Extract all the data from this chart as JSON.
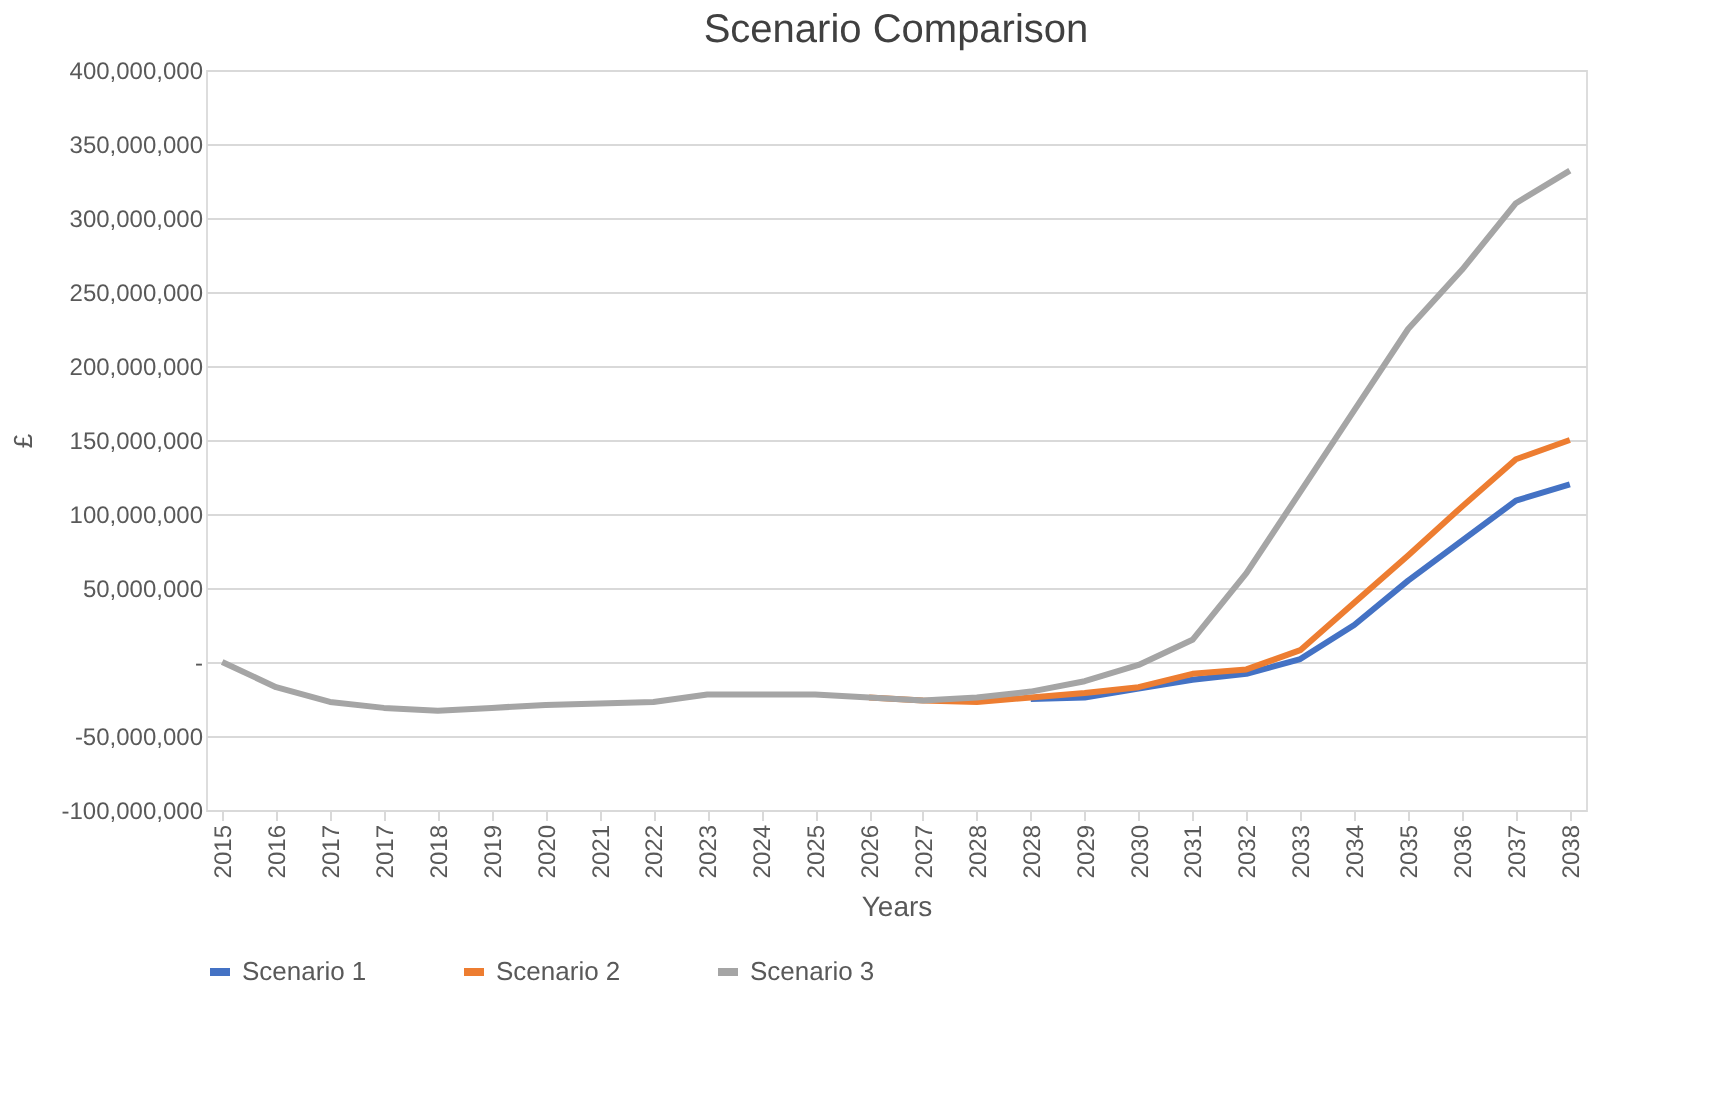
{
  "chart_data": {
    "type": "line",
    "title": "Scenario Comparison",
    "xlabel": "Years",
    "ylabel": "£",
    "categories": [
      "2015",
      "2016",
      "2017",
      "2017",
      "2018",
      "2019",
      "2020",
      "2021",
      "2022",
      "2023",
      "2024",
      "2025",
      "2026",
      "2027",
      "2028",
      "2028",
      "2029",
      "2030",
      "2031",
      "2032",
      "2033",
      "2034",
      "2035",
      "2036",
      "2037",
      "2038"
    ],
    "series": [
      {
        "name": "Scenario 1",
        "color": "#4472c4",
        "values": [
          null,
          null,
          null,
          null,
          null,
          null,
          null,
          null,
          null,
          null,
          null,
          null,
          null,
          null,
          null,
          -25000000,
          -24000000,
          -18000000,
          -12000000,
          -8000000,
          2000000,
          25000000,
          55000000,
          82000000,
          109000000,
          120000000
        ]
      },
      {
        "name": "Scenario 2",
        "color": "#ed7d31",
        "values": [
          null,
          null,
          null,
          null,
          null,
          null,
          null,
          null,
          null,
          null,
          null,
          null,
          -24000000,
          -26000000,
          -27000000,
          -24000000,
          -21000000,
          -17000000,
          -8000000,
          -5000000,
          8000000,
          40000000,
          72000000,
          105000000,
          137000000,
          150000000
        ]
      },
      {
        "name": "Scenario 3",
        "color": "#a5a5a5",
        "values": [
          0,
          -17000000,
          -27000000,
          -31000000,
          -33000000,
          -31000000,
          -29000000,
          -28000000,
          -27000000,
          -22000000,
          -22000000,
          -22000000,
          -24000000,
          -26000000,
          -24000000,
          -20000000,
          -13000000,
          -2000000,
          15000000,
          60000000,
          115000000,
          170000000,
          225000000,
          265000000,
          310000000,
          332000000
        ]
      }
    ],
    "ylim": [
      -100000000,
      400000000
    ],
    "yticks": [
      {
        "value": -100000000,
        "label": "-100,000,000"
      },
      {
        "value": -50000000,
        "label": "-50,000,000"
      },
      {
        "value": 0,
        "label": "-"
      },
      {
        "value": 50000000,
        "label": "50,000,000"
      },
      {
        "value": 100000000,
        "label": "100,000,000"
      },
      {
        "value": 150000000,
        "label": "150,000,000"
      },
      {
        "value": 200000000,
        "label": "200,000,000"
      },
      {
        "value": 250000000,
        "label": "250,000,000"
      },
      {
        "value": 300000000,
        "label": "300,000,000"
      },
      {
        "value": 350000000,
        "label": "350,000,000"
      },
      {
        "value": 400000000,
        "label": "400,000,000"
      }
    ],
    "grid": "y",
    "legend": "bottom",
    "marker": "none",
    "line_style": "solid"
  }
}
